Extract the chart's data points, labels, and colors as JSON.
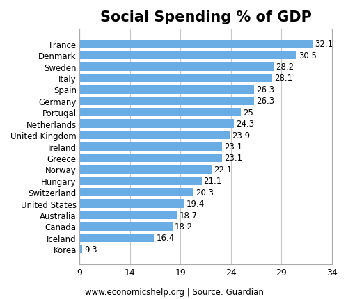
{
  "title": "Social Spending % of GDP",
  "countries": [
    "Korea",
    "Iceland",
    "Canada",
    "Australia",
    "United States",
    "Switzerland",
    "Hungary",
    "Norway",
    "Greece",
    "Ireland",
    "United Kingdom",
    "Netherlands",
    "Portugal",
    "Germany",
    "Spain",
    "Italy",
    "Sweden",
    "Denmark",
    "France"
  ],
  "values": [
    9.3,
    16.4,
    18.2,
    18.7,
    19.4,
    20.3,
    21.1,
    22.1,
    23.1,
    23.1,
    23.9,
    24.3,
    25.0,
    26.3,
    26.3,
    28.1,
    28.2,
    30.5,
    32.1
  ],
  "bar_color": "#6aade4",
  "background_color": "#ffffff",
  "plot_bg_color": "#ffffff",
  "xlim": [
    9,
    34
  ],
  "xticks": [
    9,
    14,
    19,
    24,
    29,
    34
  ],
  "grid_color": "#c8c8c8",
  "label_color": "#000000",
  "source_text": "www.economicshelp.org | Source: Guardian",
  "title_fontsize": 15,
  "label_fontsize": 8.5,
  "tick_fontsize": 9,
  "source_fontsize": 8.5,
  "bar_height": 0.75
}
